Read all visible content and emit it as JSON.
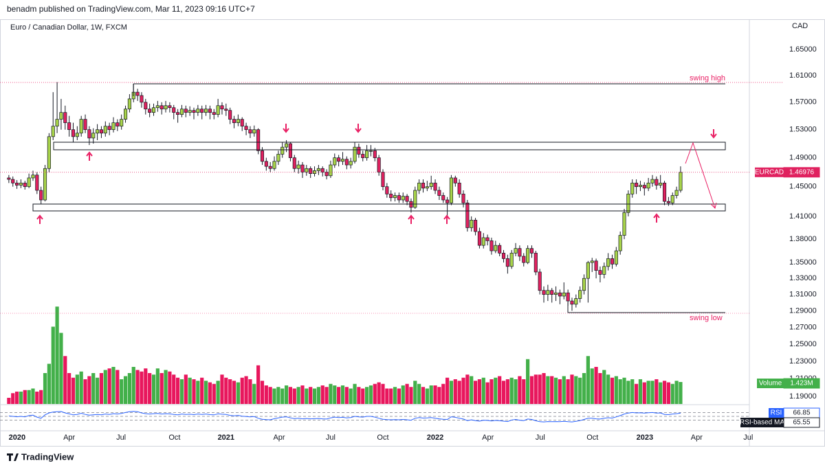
{
  "header": "benadm published on TradingView.com, Mar 11, 2023 09:16 UTC+7",
  "brand": "TradingView",
  "chart_data": {
    "type": "candlestick",
    "title": "Euro / Canadian Dollar, 1W, FXCM",
    "currency": "CAD",
    "symbol": "EURCAD",
    "log_scale": true,
    "up_color": "#a8d44a",
    "down_color": "#e0215f",
    "volume_up_color": "#43b04a",
    "volume_down_color": "#e8175d",
    "rsi_color": "#2962ff",
    "ylim": [
      1.1816,
      1.6977
    ],
    "yticks": [
      {
        "value": 1.65,
        "label": "1.65000"
      },
      {
        "value": 1.61,
        "label": "1.61000"
      },
      {
        "value": 1.57,
        "label": "1.57000"
      },
      {
        "value": 1.53,
        "label": "1.53000"
      },
      {
        "value": 1.49,
        "label": "1.49000"
      },
      {
        "value": 1.45,
        "label": "1.45000"
      },
      {
        "value": 1.41,
        "label": "1.41000"
      },
      {
        "value": 1.38,
        "label": "1.38000"
      },
      {
        "value": 1.35,
        "label": "1.35000"
      },
      {
        "value": 1.33,
        "label": "1.33000"
      },
      {
        "value": 1.31,
        "label": "1.31000"
      },
      {
        "value": 1.29,
        "label": "1.29000"
      },
      {
        "value": 1.27,
        "label": "1.27000"
      },
      {
        "value": 1.25,
        "label": "1.25000"
      },
      {
        "value": 1.23,
        "label": "1.23000"
      },
      {
        "value": 1.21,
        "label": "1.21000"
      },
      {
        "value": 1.19,
        "label": "1.19000"
      }
    ],
    "xlim": [
      -2.2,
      184.1
    ],
    "xticks": [
      {
        "value": 2.05,
        "label": "2020"
      },
      {
        "value": 15,
        "label": "Apr"
      },
      {
        "value": 27.9,
        "label": "Jul"
      },
      {
        "value": 41.2,
        "label": "Oct"
      },
      {
        "value": 54,
        "label": "2021"
      },
      {
        "value": 67.2,
        "label": "Apr"
      },
      {
        "value": 80,
        "label": "Jul"
      },
      {
        "value": 93,
        "label": "Oct"
      },
      {
        "value": 106,
        "label": "2022"
      },
      {
        "value": 119.1,
        "label": "Apr"
      },
      {
        "value": 132.1,
        "label": "Jul"
      },
      {
        "value": 145.1,
        "label": "Oct"
      },
      {
        "value": 158.1,
        "label": "2023"
      },
      {
        "value": 171,
        "label": "Apr"
      },
      {
        "value": 183.8,
        "label": "Jul"
      }
    ],
    "annotations": [
      "swing high",
      "swing low"
    ],
    "ohlc": [
      [
        1.462,
        1.466,
        1.455,
        1.46
      ],
      [
        1.46,
        1.464,
        1.45,
        1.455
      ],
      [
        1.455,
        1.459,
        1.447,
        1.452
      ],
      [
        1.452,
        1.46,
        1.448,
        1.455
      ],
      [
        1.455,
        1.458,
        1.446,
        1.45
      ],
      [
        1.45,
        1.468,
        1.448,
        1.462
      ],
      [
        1.462,
        1.472,
        1.458,
        1.466
      ],
      [
        1.466,
        1.47,
        1.44,
        1.445
      ],
      [
        1.445,
        1.45,
        1.426,
        1.432
      ],
      [
        1.432,
        1.48,
        1.43,
        1.475
      ],
      [
        1.475,
        1.525,
        1.47,
        1.52
      ],
      [
        1.52,
        1.585,
        1.515,
        1.535
      ],
      [
        1.535,
        1.6,
        1.525,
        1.545
      ],
      [
        1.545,
        1.575,
        1.53,
        1.555
      ],
      [
        1.555,
        1.565,
        1.53,
        1.54
      ],
      [
        1.54,
        1.55,
        1.52,
        1.53
      ],
      [
        1.53,
        1.54,
        1.512,
        1.52
      ],
      [
        1.52,
        1.535,
        1.515,
        1.525
      ],
      [
        1.525,
        1.55,
        1.52,
        1.545
      ],
      [
        1.545,
        1.552,
        1.525,
        1.53
      ],
      [
        1.53,
        1.535,
        1.508,
        1.518
      ],
      [
        1.518,
        1.532,
        1.51,
        1.525
      ],
      [
        1.525,
        1.538,
        1.515,
        1.53
      ],
      [
        1.53,
        1.535,
        1.518,
        1.525
      ],
      [
        1.525,
        1.542,
        1.52,
        1.535
      ],
      [
        1.535,
        1.54,
        1.522,
        1.53
      ],
      [
        1.53,
        1.548,
        1.526,
        1.54
      ],
      [
        1.54,
        1.545,
        1.528,
        1.535
      ],
      [
        1.535,
        1.552,
        1.53,
        1.545
      ],
      [
        1.545,
        1.565,
        1.54,
        1.56
      ],
      [
        1.56,
        1.582,
        1.555,
        1.575
      ],
      [
        1.575,
        1.597,
        1.57,
        1.585
      ],
      [
        1.585,
        1.59,
        1.572,
        1.58
      ],
      [
        1.58,
        1.585,
        1.562,
        1.57
      ],
      [
        1.57,
        1.575,
        1.552,
        1.56
      ],
      [
        1.56,
        1.568,
        1.548,
        1.555
      ],
      [
        1.555,
        1.568,
        1.55,
        1.562
      ],
      [
        1.562,
        1.572,
        1.556,
        1.565
      ],
      [
        1.565,
        1.57,
        1.552,
        1.56
      ],
      [
        1.56,
        1.572,
        1.555,
        1.565
      ],
      [
        1.565,
        1.57,
        1.555,
        1.562
      ],
      [
        1.562,
        1.566,
        1.545,
        1.555
      ],
      [
        1.555,
        1.56,
        1.54,
        1.552
      ],
      [
        1.552,
        1.566,
        1.548,
        1.56
      ],
      [
        1.56,
        1.565,
        1.548,
        1.555
      ],
      [
        1.555,
        1.564,
        1.55,
        1.558
      ],
      [
        1.558,
        1.562,
        1.545,
        1.555
      ],
      [
        1.555,
        1.566,
        1.55,
        1.56
      ],
      [
        1.56,
        1.565,
        1.545,
        1.555
      ],
      [
        1.555,
        1.566,
        1.55,
        1.56
      ],
      [
        1.56,
        1.565,
        1.545,
        1.555
      ],
      [
        1.555,
        1.56,
        1.545,
        1.552
      ],
      [
        1.552,
        1.575,
        1.548,
        1.565
      ],
      [
        1.565,
        1.57,
        1.552,
        1.56
      ],
      [
        1.56,
        1.568,
        1.55,
        1.558
      ],
      [
        1.558,
        1.562,
        1.538,
        1.545
      ],
      [
        1.545,
        1.55,
        1.532,
        1.54
      ],
      [
        1.54,
        1.552,
        1.535,
        1.545
      ],
      [
        1.545,
        1.548,
        1.528,
        1.535
      ],
      [
        1.535,
        1.54,
        1.522,
        1.53
      ],
      [
        1.53,
        1.535,
        1.518,
        1.525
      ],
      [
        1.525,
        1.536,
        1.52,
        1.53
      ],
      [
        1.53,
        1.532,
        1.495,
        1.5
      ],
      [
        1.5,
        1.505,
        1.48,
        1.485
      ],
      [
        1.485,
        1.49,
        1.472,
        1.478
      ],
      [
        1.478,
        1.484,
        1.47,
        1.475
      ],
      [
        1.475,
        1.492,
        1.472,
        1.485
      ],
      [
        1.485,
        1.5,
        1.48,
        1.495
      ],
      [
        1.495,
        1.512,
        1.49,
        1.505
      ],
      [
        1.505,
        1.515,
        1.498,
        1.51
      ],
      [
        1.51,
        1.512,
        1.485,
        1.49
      ],
      [
        1.49,
        1.494,
        1.47,
        1.475
      ],
      [
        1.475,
        1.486,
        1.468,
        1.48
      ],
      [
        1.48,
        1.484,
        1.462,
        1.47
      ],
      [
        1.47,
        1.48,
        1.465,
        1.475
      ],
      [
        1.475,
        1.478,
        1.462,
        1.468
      ],
      [
        1.468,
        1.478,
        1.464,
        1.472
      ],
      [
        1.472,
        1.48,
        1.466,
        1.475
      ],
      [
        1.475,
        1.478,
        1.464,
        1.47
      ],
      [
        1.47,
        1.474,
        1.46,
        1.465
      ],
      [
        1.465,
        1.486,
        1.462,
        1.48
      ],
      [
        1.48,
        1.496,
        1.476,
        1.49
      ],
      [
        1.49,
        1.494,
        1.478,
        1.485
      ],
      [
        1.485,
        1.498,
        1.48,
        1.488
      ],
      [
        1.488,
        1.492,
        1.474,
        1.48
      ],
      [
        1.48,
        1.49,
        1.475,
        1.485
      ],
      [
        1.485,
        1.512,
        1.482,
        1.505
      ],
      [
        1.505,
        1.51,
        1.49,
        1.495
      ],
      [
        1.495,
        1.5,
        1.485,
        1.49
      ],
      [
        1.49,
        1.508,
        1.486,
        1.5
      ],
      [
        1.5,
        1.508,
        1.492,
        1.5
      ],
      [
        1.5,
        1.504,
        1.485,
        1.49
      ],
      [
        1.49,
        1.494,
        1.465,
        1.47
      ],
      [
        1.47,
        1.474,
        1.445,
        1.45
      ],
      [
        1.45,
        1.455,
        1.435,
        1.44
      ],
      [
        1.44,
        1.445,
        1.43,
        1.435
      ],
      [
        1.435,
        1.442,
        1.43,
        1.438
      ],
      [
        1.438,
        1.442,
        1.428,
        1.432
      ],
      [
        1.432,
        1.442,
        1.428,
        1.437
      ],
      [
        1.437,
        1.44,
        1.425,
        1.43
      ],
      [
        1.43,
        1.434,
        1.415,
        1.422
      ],
      [
        1.422,
        1.45,
        1.42,
        1.445
      ],
      [
        1.445,
        1.46,
        1.44,
        1.455
      ],
      [
        1.455,
        1.46,
        1.442,
        1.448
      ],
      [
        1.448,
        1.458,
        1.444,
        1.45
      ],
      [
        1.45,
        1.465,
        1.446,
        1.455
      ],
      [
        1.455,
        1.46,
        1.44,
        1.445
      ],
      [
        1.445,
        1.45,
        1.432,
        1.438
      ],
      [
        1.438,
        1.442,
        1.428,
        1.432
      ],
      [
        1.432,
        1.436,
        1.41,
        1.428
      ],
      [
        1.428,
        1.466,
        1.425,
        1.462
      ],
      [
        1.462,
        1.465,
        1.45,
        1.455
      ],
      [
        1.455,
        1.46,
        1.435,
        1.44
      ],
      [
        1.44,
        1.445,
        1.422,
        1.428
      ],
      [
        1.428,
        1.432,
        1.39,
        1.395
      ],
      [
        1.395,
        1.41,
        1.39,
        1.405
      ],
      [
        1.405,
        1.408,
        1.385,
        1.39
      ],
      [
        1.39,
        1.395,
        1.368,
        1.372
      ],
      [
        1.372,
        1.388,
        1.368,
        1.382
      ],
      [
        1.382,
        1.386,
        1.372,
        1.378
      ],
      [
        1.378,
        1.382,
        1.36,
        1.365
      ],
      [
        1.365,
        1.378,
        1.362,
        1.372
      ],
      [
        1.372,
        1.375,
        1.358,
        1.362
      ],
      [
        1.362,
        1.366,
        1.35,
        1.355
      ],
      [
        1.355,
        1.36,
        1.336,
        1.345
      ],
      [
        1.345,
        1.366,
        1.342,
        1.362
      ],
      [
        1.362,
        1.375,
        1.358,
        1.368
      ],
      [
        1.368,
        1.372,
        1.352,
        1.358
      ],
      [
        1.358,
        1.362,
        1.345,
        1.35
      ],
      [
        1.35,
        1.372,
        1.348,
        1.368
      ],
      [
        1.368,
        1.372,
        1.356,
        1.362
      ],
      [
        1.362,
        1.365,
        1.334,
        1.338
      ],
      [
        1.338,
        1.342,
        1.31,
        1.315
      ],
      [
        1.315,
        1.32,
        1.3,
        1.31
      ],
      [
        1.31,
        1.322,
        1.302,
        1.315
      ],
      [
        1.315,
        1.318,
        1.3,
        1.31
      ],
      [
        1.31,
        1.32,
        1.302,
        1.312
      ],
      [
        1.312,
        1.316,
        1.298,
        1.308
      ],
      [
        1.308,
        1.325,
        1.304,
        1.312
      ],
      [
        1.312,
        1.316,
        1.296,
        1.302
      ],
      [
        1.302,
        1.306,
        1.29,
        1.298
      ],
      [
        1.298,
        1.31,
        1.294,
        1.305
      ],
      [
        1.305,
        1.32,
        1.3,
        1.315
      ],
      [
        1.315,
        1.335,
        1.31,
        1.33
      ],
      [
        1.33,
        1.352,
        1.3,
        1.35
      ],
      [
        1.35,
        1.356,
        1.338,
        1.352
      ],
      [
        1.352,
        1.355,
        1.33,
        1.34
      ],
      [
        1.34,
        1.345,
        1.325,
        1.335
      ],
      [
        1.335,
        1.35,
        1.33,
        1.345
      ],
      [
        1.345,
        1.362,
        1.34,
        1.355
      ],
      [
        1.355,
        1.36,
        1.342,
        1.348
      ],
      [
        1.348,
        1.37,
        1.345,
        1.365
      ],
      [
        1.365,
        1.39,
        1.36,
        1.385
      ],
      [
        1.385,
        1.42,
        1.38,
        1.415
      ],
      [
        1.415,
        1.445,
        1.41,
        1.44
      ],
      [
        1.44,
        1.46,
        1.435,
        1.455
      ],
      [
        1.455,
        1.46,
        1.44,
        1.45
      ],
      [
        1.45,
        1.458,
        1.444,
        1.452
      ],
      [
        1.452,
        1.456,
        1.438,
        1.448
      ],
      [
        1.448,
        1.462,
        1.444,
        1.455
      ],
      [
        1.455,
        1.466,
        1.45,
        1.46
      ],
      [
        1.46,
        1.464,
        1.446,
        1.452
      ],
      [
        1.452,
        1.466,
        1.448,
        1.455
      ],
      [
        1.455,
        1.458,
        1.425,
        1.43
      ],
      [
        1.43,
        1.436,
        1.424,
        1.428
      ],
      [
        1.428,
        1.442,
        1.425,
        1.438
      ],
      [
        1.438,
        1.45,
        1.434,
        1.445
      ],
      [
        1.445,
        1.478,
        1.442,
        1.46976
      ]
    ],
    "volume_name": "Volume",
    "volume_label": "1.423M",
    "volume": [
      0.4,
      0.7,
      0.8,
      0.8,
      0.9,
      0.9,
      1.0,
      0.8,
      0.9,
      2.0,
      2.6,
      5.0,
      6.3,
      4.6,
      3.1,
      2.0,
      1.7,
      1.9,
      2.1,
      1.6,
      1.8,
      2.0,
      1.7,
      2.0,
      2.2,
      2.3,
      2.4,
      2.2,
      1.6,
      1.8,
      2.0,
      2.4,
      2.2,
      2.1,
      2.3,
      2.0,
      1.9,
      2.3,
      2.0,
      2.2,
      2.1,
      1.9,
      1.7,
      1.6,
      1.9,
      1.7,
      1.6,
      1.5,
      1.7,
      1.5,
      1.4,
      1.3,
      1.5,
      1.9,
      1.7,
      1.6,
      1.5,
      1.4,
      1.7,
      1.8,
      1.6,
      1.3,
      2.5,
      1.5,
      1.2,
      1.1,
      1.0,
      1.1,
      1.0,
      1.2,
      1.1,
      1.0,
      1.1,
      1.2,
      1.0,
      1.1,
      1.0,
      1.1,
      1.2,
      1.1,
      1.3,
      1.2,
      1.1,
      1.2,
      1.1,
      1.0,
      1.3,
      1.1,
      1.0,
      1.1,
      1.2,
      1.3,
      1.4,
      1.3,
      1.0,
      1.0,
      1.1,
      1.0,
      1.2,
      1.3,
      1.1,
      1.5,
      1.3,
      1.1,
      1.0,
      1.2,
      1.2,
      1.1,
      1.3,
      1.7,
      1.5,
      1.6,
      1.5,
      1.7,
      1.9,
      1.8,
      1.5,
      1.6,
      1.7,
      1.4,
      1.6,
      1.7,
      1.8,
      1.5,
      1.6,
      1.7,
      1.6,
      1.8,
      1.6,
      2.9,
      1.8,
      1.9,
      1.9,
      2.0,
      1.8,
      1.8,
      1.7,
      1.6,
      1.8,
      1.6,
      1.9,
      1.8,
      1.7,
      2.0,
      3.1,
      2.3,
      2.4,
      2.0,
      2.2,
      1.9,
      1.7,
      1.8,
      1.6,
      1.7,
      1.5,
      1.6,
      1.3,
      1.6,
      1.4,
      1.5,
      1.5,
      1.6,
      1.4,
      1.5,
      1.4,
      1.3,
      1.5,
      1.423
    ],
    "rsi_name": "RSI",
    "rsi_ma_name": "RSI-based MA",
    "rsi_ma": 65.55,
    "rsi_lim": [
      0,
      100
    ],
    "rsi_levels": [
      70,
      50,
      30
    ],
    "rsi": [
      52,
      50,
      48,
      50,
      47,
      54,
      56,
      46,
      40,
      58,
      68,
      72,
      74,
      75,
      68,
      63,
      58,
      60,
      66,
      60,
      56,
      58,
      60,
      58,
      62,
      60,
      64,
      62,
      65,
      70,
      74,
      76,
      74,
      68,
      64,
      62,
      64,
      65,
      62,
      64,
      63,
      60,
      58,
      62,
      60,
      61,
      59,
      62,
      60,
      62,
      59,
      58,
      63,
      61,
      60,
      55,
      53,
      55,
      51,
      49,
      47,
      49,
      40,
      35,
      33,
      32,
      38,
      42,
      46,
      48,
      42,
      38,
      40,
      37,
      39,
      37,
      38,
      39,
      37,
      36,
      42,
      46,
      44,
      45,
      42,
      44,
      50,
      47,
      46,
      50,
      50,
      46,
      40,
      35,
      33,
      32,
      33,
      32,
      34,
      32,
      30,
      40,
      44,
      41,
      42,
      44,
      40,
      37,
      35,
      34,
      48,
      45,
      40,
      36,
      28,
      32,
      28,
      25,
      30,
      29,
      26,
      29,
      27,
      25,
      23,
      31,
      34,
      30,
      28,
      36,
      34,
      27,
      22,
      21,
      23,
      22,
      23,
      22,
      24,
      22,
      21,
      24,
      28,
      34,
      40,
      40,
      37,
      36,
      40,
      43,
      41,
      47,
      54,
      62,
      67,
      70,
      68,
      69,
      67,
      69,
      70,
      67,
      68,
      60,
      59,
      62,
      64,
      66.85
    ]
  }
}
